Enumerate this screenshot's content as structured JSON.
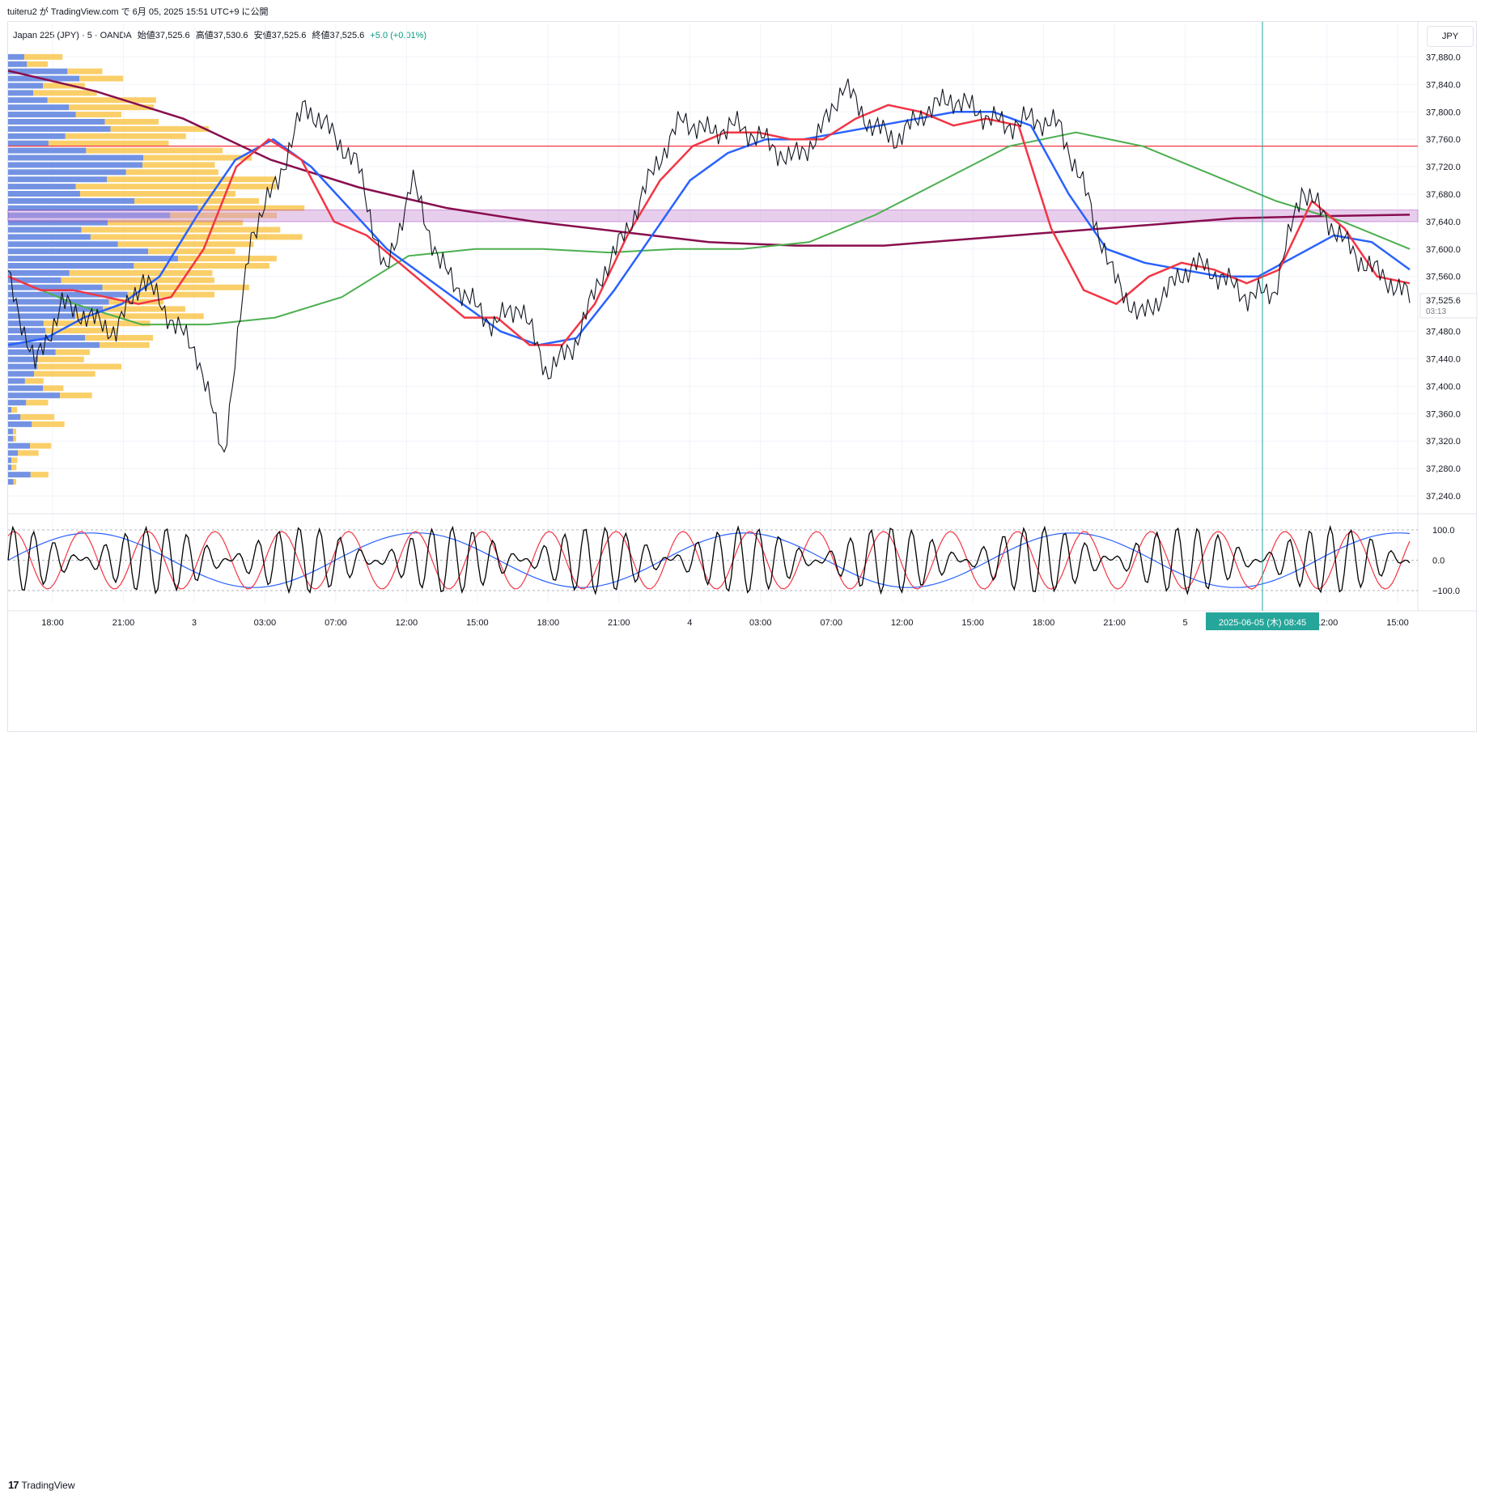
{
  "header": {
    "publish_text": "tuiteru2 が TradingView.com で 6月 05, 2025 15:51 UTC+9 に公開"
  },
  "symbol_bar": {
    "symbol": "Japan 225 (JPY) · 5 · OANDA",
    "open": "始値37,525.6",
    "high": "高値37,530.6",
    "low": "安値37,525.6",
    "close": "終値37,525.6",
    "change": "+5.0 (+0.01%)"
  },
  "currency_button": "JPY",
  "price_axis": {
    "labels": [
      "37,880.0",
      "37,840.0",
      "37,800.0",
      "37,760.0",
      "37,720.0",
      "37,680.0",
      "37,640.0",
      "37,600.0",
      "37,560.0",
      "37,480.0",
      "37,440.0",
      "37,400.0",
      "37,360.0",
      "37,320.0",
      "37,280.0",
      "37,240.0"
    ],
    "last_price": "37,525.6",
    "countdown": "03:13"
  },
  "oscillator_axis": {
    "labels": [
      "100.0",
      "0.0",
      "−100.0"
    ]
  },
  "time_axis": {
    "labels": [
      "18:00",
      "21:00",
      "3",
      "03:00",
      "07:00",
      "12:00",
      "15:00",
      "18:00",
      "21:00",
      "4",
      "03:00",
      "07:00",
      "12:00",
      "15:00",
      "18:00",
      "21:00",
      "5",
      "03:00",
      "12:00",
      "15:00"
    ],
    "crosshair_label": "2025-06-05 (木)   08:45"
  },
  "footer": {
    "logo_mark": "17",
    "logo_text": "TradingView"
  },
  "colors": {
    "candle": "#131722",
    "ema_red": "#f23645",
    "ema_blue": "#2962ff",
    "ma_green": "#4caf50",
    "ma_maroon": "#880e4f",
    "resistance_line": "#f23645",
    "zone_fill": "#ce93d8",
    "volume_profile_orange": "#f9c74f",
    "volume_profile_blue": "#5b7fde",
    "crosshair": "#26a69a",
    "osc_black": "#000000",
    "osc_red": "#f23645",
    "osc_blue": "#2962ff"
  },
  "chart_data": {
    "type": "line",
    "symbol": "Japan 225 (JPY)",
    "interval": "5",
    "y_range": [
      37220,
      37910
    ],
    "x_sessions": [
      "18:00",
      "21:00",
      "3",
      "03:00",
      "07:00",
      "12:00",
      "15:00",
      "18:00",
      "21:00",
      "4",
      "03:00",
      "07:00",
      "12:00",
      "15:00",
      "18:00",
      "21:00",
      "5",
      "03:00",
      "12:00",
      "15:00"
    ],
    "price_series": {
      "values": [
        37560,
        37430,
        37520,
        37500,
        37480,
        37560,
        37500,
        37450,
        37300,
        37620,
        37700,
        37810,
        37770,
        37720,
        37560,
        37700,
        37580,
        37530,
        37490,
        37520,
        37420,
        37460,
        37560,
        37630,
        37720,
        37790,
        37770,
        37780,
        37760,
        37730,
        37760,
        37840,
        37780,
        37760,
        37800,
        37820,
        37800,
        37780,
        37790,
        37780,
        37680,
        37560,
        37500,
        37540,
        37580,
        37560,
        37530,
        37540,
        37690,
        37640,
        37590,
        37560,
        37530
      ]
    },
    "ema_fast": {
      "name": "",
      "values": [
        37560,
        37540,
        37540,
        37530,
        37520,
        37530,
        37600,
        37720,
        37760,
        37730,
        37640,
        37620,
        37580,
        37540,
        37500,
        37500,
        37460,
        37460,
        37520,
        37620,
        37700,
        37750,
        37770,
        37770,
        37760,
        37760,
        37790,
        37810,
        37800,
        37780,
        37790,
        37780,
        37630,
        37540,
        37520,
        37560,
        37580,
        37570,
        37550,
        37570,
        37670,
        37630,
        37560,
        37550
      ]
    },
    "ema_slow": {
      "name": "",
      "values": [
        37460,
        37470,
        37500,
        37520,
        37560,
        37650,
        37730,
        37760,
        37720,
        37660,
        37600,
        37560,
        37520,
        37480,
        37460,
        37470,
        37540,
        37620,
        37700,
        37740,
        37760,
        37760,
        37770,
        37780,
        37790,
        37800,
        37800,
        37780,
        37680,
        37600,
        37580,
        37570,
        37560,
        37560,
        37590,
        37620,
        37610,
        37570
      ]
    },
    "ma_green": {
      "name": "",
      "values": [
        37560,
        37520,
        37490,
        37490,
        37500,
        37530,
        37590,
        37600,
        37600,
        37595,
        37600,
        37600,
        37610,
        37650,
        37700,
        37750,
        37770,
        37750,
        37710,
        37670,
        37640,
        37600
      ]
    },
    "ma_maroon": {
      "name": "",
      "values": [
        37860,
        37830,
        37790,
        37730,
        37690,
        37660,
        37640,
        37625,
        37610,
        37605,
        37605,
        37615,
        37625,
        37635,
        37645,
        37648,
        37650
      ]
    },
    "resistance_level": 37750,
    "zone": [
      37640,
      37657
    ],
    "oscillator": {
      "y_range": [
        -140,
        140
      ],
      "ticks": [
        100,
        0,
        -100
      ]
    }
  }
}
